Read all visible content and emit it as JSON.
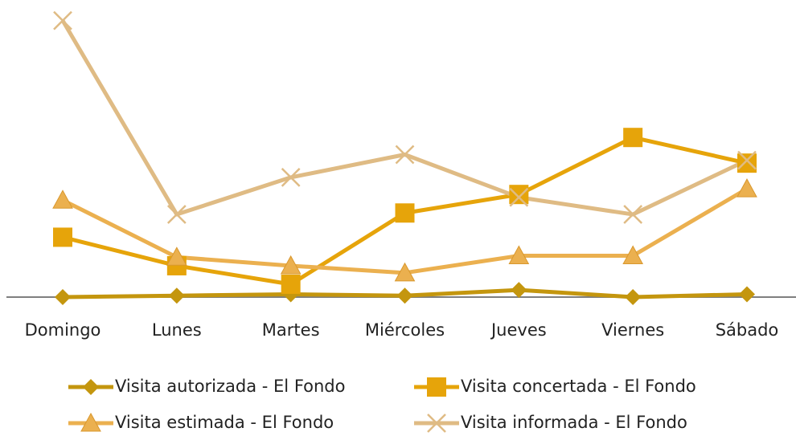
{
  "chart_data": {
    "type": "line",
    "categories": [
      "Domingo",
      "Lunes",
      "Martes",
      "Miércoles",
      "Jueves",
      "Viernes",
      "Sábado"
    ],
    "ylim": [
      0,
      100
    ],
    "series": [
      {
        "name": "Visita autorizada - El Fondo",
        "color": "#c4960e",
        "marker": "diamond",
        "values": [
          0,
          0.5,
          1,
          0.5,
          2.5,
          0,
          1
        ]
      },
      {
        "name": "Visita concertada - El Fondo",
        "color": "#e6a40a",
        "marker": "square",
        "values": [
          21,
          11,
          4.5,
          29.5,
          36,
          56,
          47
        ]
      },
      {
        "name": "Visita estimada - El Fondo",
        "color": "#ebb04f",
        "marker": "triangle",
        "values": [
          34,
          14,
          11,
          8.5,
          14.5,
          14.5,
          38
        ]
      },
      {
        "name": "Visita informada - El Fondo",
        "color": "#dfbb84",
        "marker": "x",
        "values": [
          97,
          29,
          42,
          50,
          35,
          29,
          48
        ]
      }
    ]
  }
}
